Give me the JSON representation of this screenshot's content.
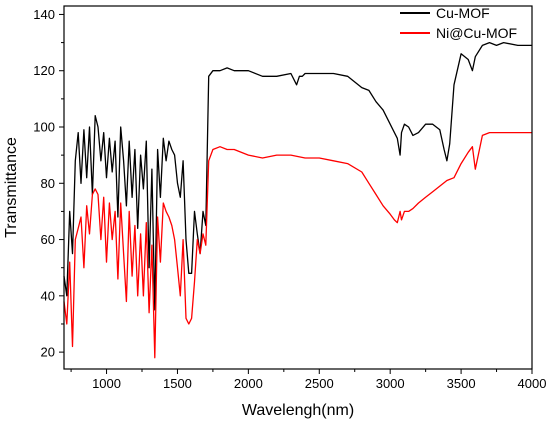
{
  "chart_data": {
    "type": "line",
    "title": "",
    "xlabel": "Wavelengh(nm)",
    "ylabel": "Transmittance",
    "xlim": [
      700,
      4000
    ],
    "ylim": [
      14,
      143
    ],
    "xticks": [
      1000,
      1500,
      2000,
      2500,
      3000,
      3500,
      4000
    ],
    "xtick_labels": [
      "1000",
      "1500",
      "2000",
      "2500",
      "3000",
      "3500",
      "4000"
    ],
    "yticks": [
      20,
      40,
      60,
      80,
      100,
      120,
      140
    ],
    "ytick_labels": [
      "20",
      "40",
      "60",
      "80",
      "100",
      "120",
      "140"
    ],
    "grid": false,
    "legend_position": "top-right",
    "series": [
      {
        "name": "Cu-MOF",
        "color": "#000000",
        "x": [
          700,
          720,
          740,
          760,
          780,
          800,
          820,
          840,
          860,
          880,
          900,
          920,
          940,
          960,
          980,
          1000,
          1020,
          1040,
          1060,
          1080,
          1100,
          1120,
          1140,
          1160,
          1180,
          1200,
          1220,
          1240,
          1260,
          1280,
          1300,
          1320,
          1340,
          1360,
          1380,
          1400,
          1420,
          1440,
          1460,
          1480,
          1500,
          1520,
          1540,
          1560,
          1580,
          1600,
          1620,
          1640,
          1660,
          1680,
          1700,
          1720,
          1750,
          1800,
          1850,
          1900,
          2000,
          2100,
          2200,
          2300,
          2340,
          2360,
          2380,
          2400,
          2500,
          2600,
          2700,
          2800,
          2850,
          2900,
          2950,
          3000,
          3030,
          3050,
          3070,
          3080,
          3100,
          3130,
          3160,
          3200,
          3250,
          3300,
          3350,
          3380,
          3400,
          3420,
          3450,
          3500,
          3550,
          3580,
          3600,
          3650,
          3700,
          3750,
          3800,
          3900,
          4000
        ],
        "values": [
          47,
          40,
          70,
          55,
          88,
          98,
          80,
          99,
          82,
          100,
          76,
          104,
          100,
          88,
          98,
          82,
          96,
          84,
          95,
          68,
          100,
          88,
          72,
          95,
          75,
          92,
          64,
          90,
          78,
          95,
          50,
          85,
          35,
          92,
          75,
          96,
          88,
          95,
          92,
          90,
          80,
          75,
          88,
          60,
          48,
          48,
          70,
          62,
          55,
          70,
          65,
          118,
          120,
          120,
          121,
          120,
          120,
          118,
          118,
          119,
          115,
          118,
          118,
          119,
          119,
          119,
          118,
          114,
          113,
          109,
          106,
          101,
          98,
          96,
          90,
          98,
          101,
          100,
          97,
          98,
          101,
          101,
          99,
          92,
          88,
          94,
          115,
          126,
          124,
          120,
          125,
          129,
          130,
          129,
          130,
          129,
          129
        ]
      },
      {
        "name": "Ni@Cu-MOF",
        "color": "#ff0000",
        "x": [
          700,
          720,
          740,
          760,
          780,
          800,
          820,
          840,
          860,
          880,
          900,
          920,
          940,
          960,
          980,
          1000,
          1020,
          1040,
          1060,
          1080,
          1100,
          1120,
          1140,
          1160,
          1180,
          1200,
          1220,
          1240,
          1260,
          1280,
          1300,
          1320,
          1340,
          1360,
          1380,
          1400,
          1420,
          1440,
          1460,
          1480,
          1500,
          1520,
          1540,
          1560,
          1580,
          1600,
          1620,
          1640,
          1660,
          1680,
          1700,
          1720,
          1750,
          1800,
          1850,
          1900,
          2000,
          2100,
          2200,
          2300,
          2400,
          2500,
          2600,
          2700,
          2800,
          2850,
          2900,
          2950,
          3000,
          3030,
          3050,
          3070,
          3080,
          3100,
          3130,
          3160,
          3200,
          3250,
          3300,
          3350,
          3400,
          3450,
          3500,
          3550,
          3580,
          3600,
          3650,
          3700,
          3750,
          3800,
          3900,
          4000
        ],
        "values": [
          38,
          30,
          52,
          22,
          60,
          64,
          68,
          50,
          72,
          62,
          76,
          78,
          76,
          60,
          75,
          52,
          73,
          60,
          70,
          46,
          73,
          55,
          38,
          70,
          47,
          65,
          40,
          62,
          40,
          66,
          34,
          58,
          18,
          68,
          52,
          73,
          70,
          68,
          65,
          60,
          50,
          40,
          60,
          32,
          30,
          32,
          45,
          60,
          55,
          62,
          58,
          88,
          92,
          93,
          92,
          92,
          90,
          89,
          90,
          90,
          89,
          89,
          88,
          87,
          84,
          80,
          76,
          72,
          69,
          67,
          66,
          70,
          67,
          70,
          70,
          71,
          73,
          75,
          77,
          79,
          81,
          82,
          87,
          91,
          93,
          85,
          97,
          98,
          98,
          98,
          98,
          98
        ]
      }
    ]
  }
}
